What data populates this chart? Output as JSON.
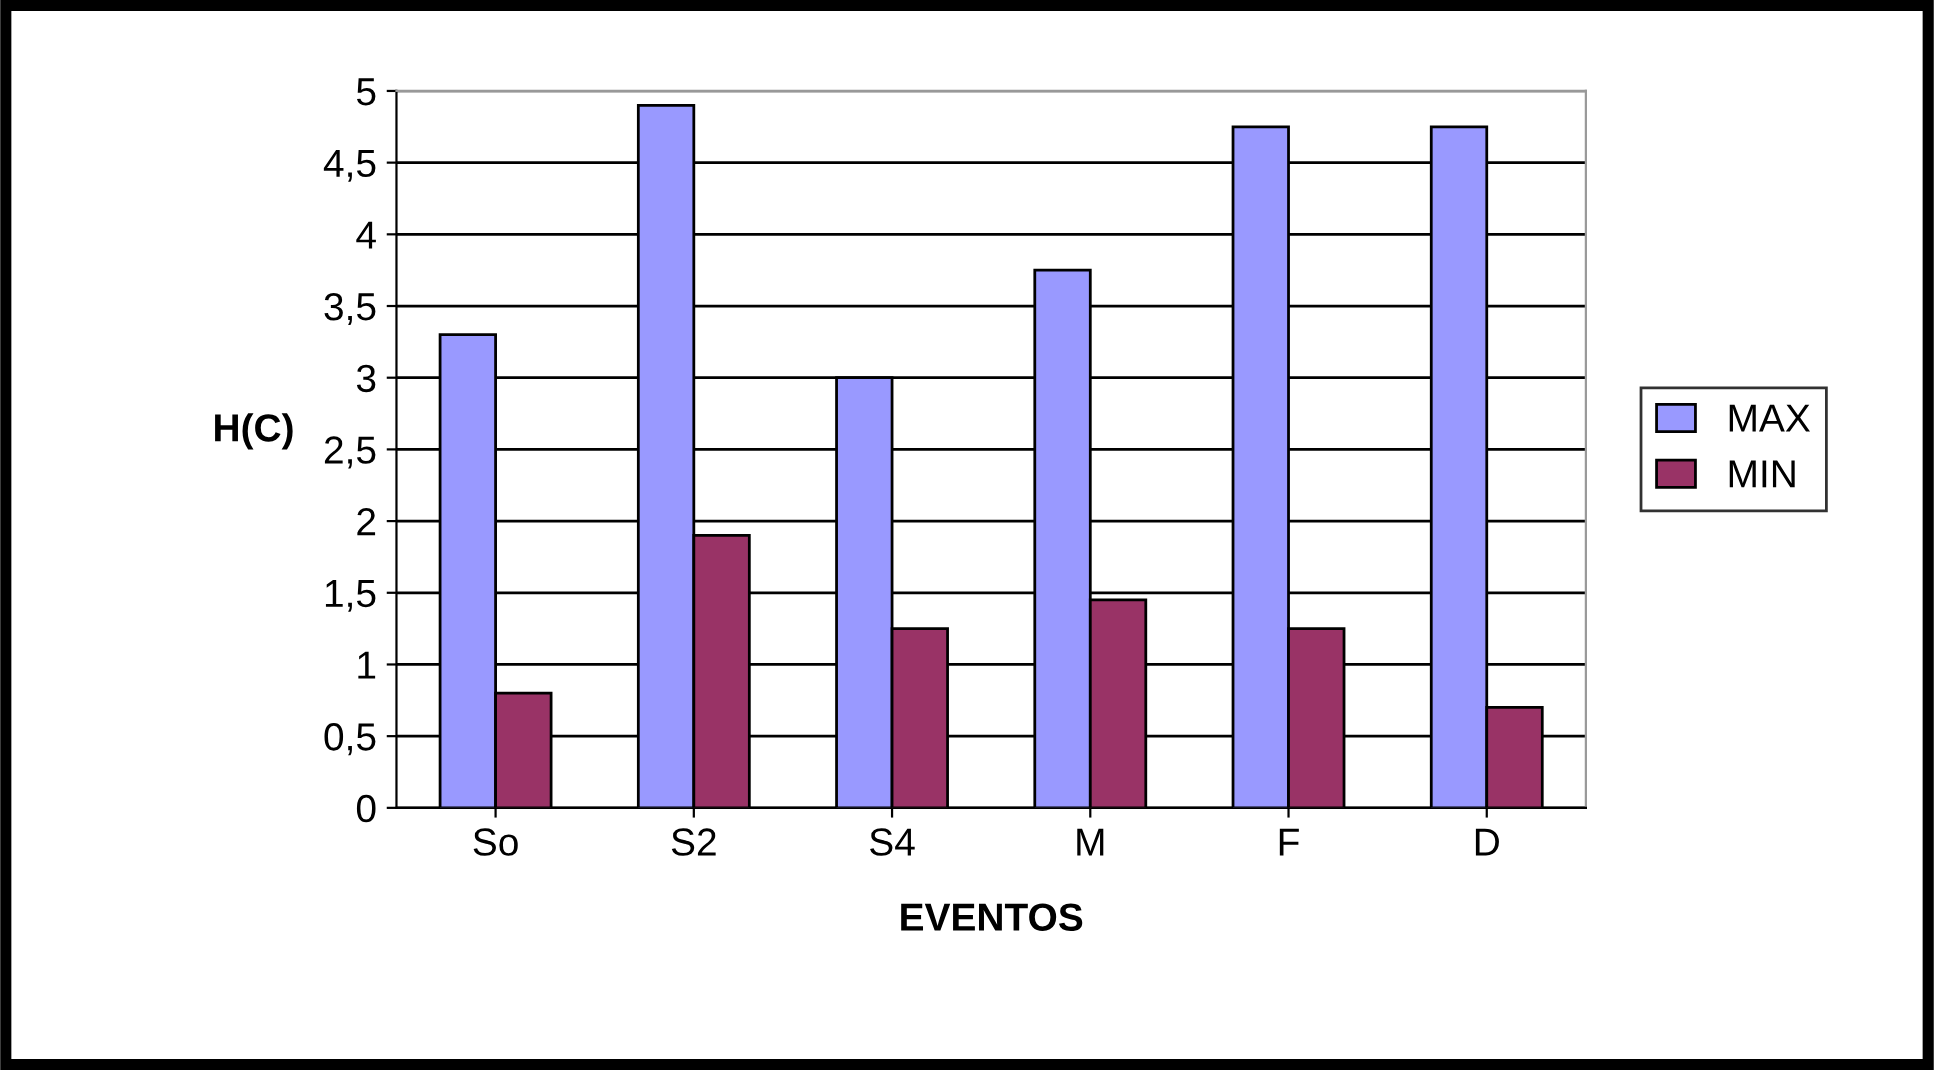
{
  "chart_data": {
    "type": "bar",
    "xlabel": "EVENTOS",
    "ylabel": "H(C)",
    "categories": [
      "So",
      "S2",
      "S4",
      "M",
      "F",
      "D"
    ],
    "series": [
      {
        "name": "MAX",
        "color": "#9999ff",
        "values": [
          3.3,
          4.9,
          3.0,
          3.75,
          4.75,
          4.75
        ]
      },
      {
        "name": "MIN",
        "color": "#993366",
        "values": [
          0.8,
          1.9,
          1.25,
          1.45,
          1.25,
          0.7
        ]
      }
    ],
    "ylim": [
      0,
      5
    ],
    "yticks": [
      0,
      {
        "value": 0.5,
        "label": "0,5"
      },
      1,
      {
        "value": 1.5,
        "label": "1,5"
      },
      2,
      {
        "value": 2.5,
        "label": "2,5"
      },
      3,
      {
        "value": 3.5,
        "label": "3,5"
      },
      4,
      {
        "value": 4.5,
        "label": "4,5"
      },
      5
    ],
    "grid": "y",
    "legend": "right"
  }
}
